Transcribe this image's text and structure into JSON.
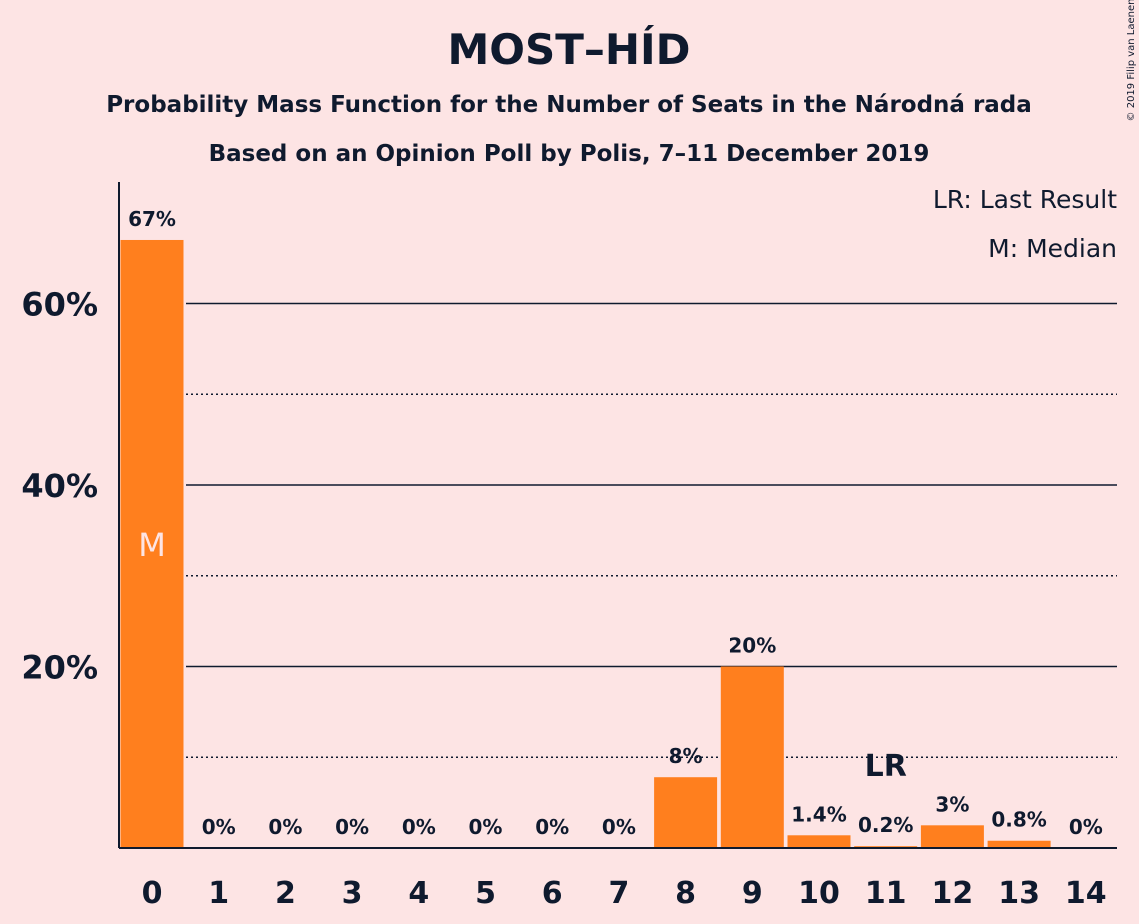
{
  "chart_data": {
    "type": "bar",
    "title": "MOST–HÍD",
    "subtitle_1": "Probability Mass Function for the Number of Seats in the Národná rada",
    "subtitle_2": "Based on an Opinion Poll by Polis, 7–11 December 2019",
    "copyright": "© 2019 Filip van Laenen",
    "categories": [
      "0",
      "1",
      "2",
      "3",
      "4",
      "5",
      "6",
      "7",
      "8",
      "9",
      "10",
      "11",
      "12",
      "13",
      "14"
    ],
    "values": [
      67,
      0,
      0,
      0,
      0,
      0,
      0,
      0,
      7.8,
      20,
      1.4,
      0.2,
      2.5,
      0.8,
      0
    ],
    "data_labels": [
      "67%",
      "0%",
      "0%",
      "0%",
      "0%",
      "0%",
      "0%",
      "0%",
      "8%",
      "20%",
      "1.4%",
      "0.2%",
      "3%",
      "0.8%",
      "0%"
    ],
    "ylim": [
      0,
      73
    ],
    "yticks": [
      {
        "value": 20,
        "label": "20%"
      },
      {
        "value": 40,
        "label": "40%"
      },
      {
        "value": 60,
        "label": "60%"
      }
    ],
    "grid_solid": [
      20,
      40,
      60
    ],
    "grid_dotted": [
      10,
      30,
      50
    ],
    "bar_color": "#ff7f1e",
    "median": {
      "category": "0",
      "label": "M"
    },
    "last_result": {
      "category": "11",
      "label": "LR"
    },
    "legend": {
      "position": "top-right",
      "items": [
        "LR: Last Result",
        "M: Median"
      ]
    }
  }
}
